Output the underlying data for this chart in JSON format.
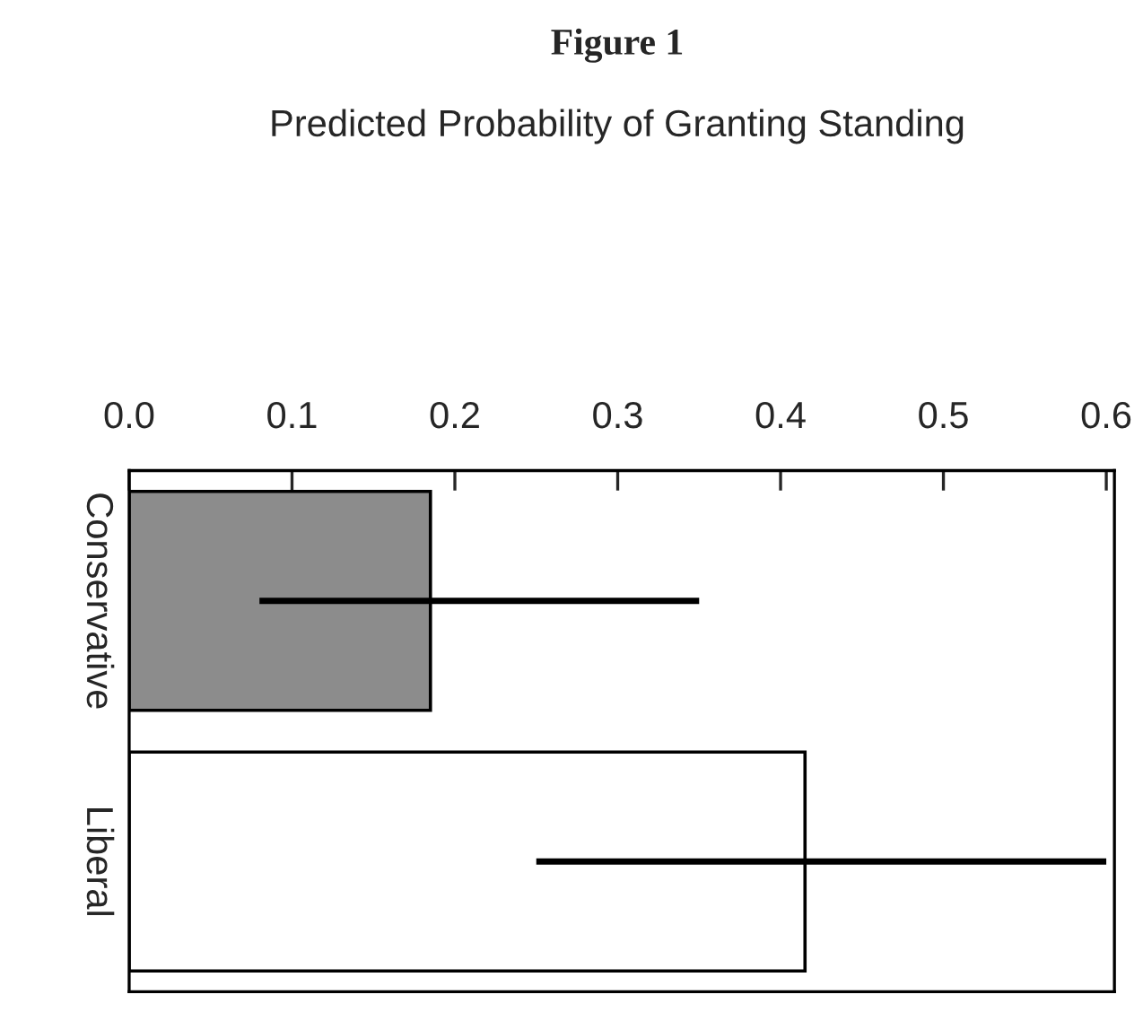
{
  "chart_data": {
    "type": "bar",
    "orientation": "horizontal",
    "title": "Figure 1",
    "subtitle": "Predicted Probability of Granting Standing",
    "categories": [
      "Conservative",
      "Liberal"
    ],
    "values": [
      0.185,
      0.415
    ],
    "errors": [
      [
        0.08,
        0.35
      ],
      [
        0.25,
        0.6
      ]
    ],
    "colors": [
      "#8c8c8c",
      "#ffffff"
    ],
    "xlim": [
      0,
      0.605
    ],
    "xticks": [
      {
        "value": 0,
        "label": "0.0"
      },
      0.1,
      0.2,
      0.3,
      0.4,
      0.5,
      0.6
    ],
    "grid": false
  }
}
